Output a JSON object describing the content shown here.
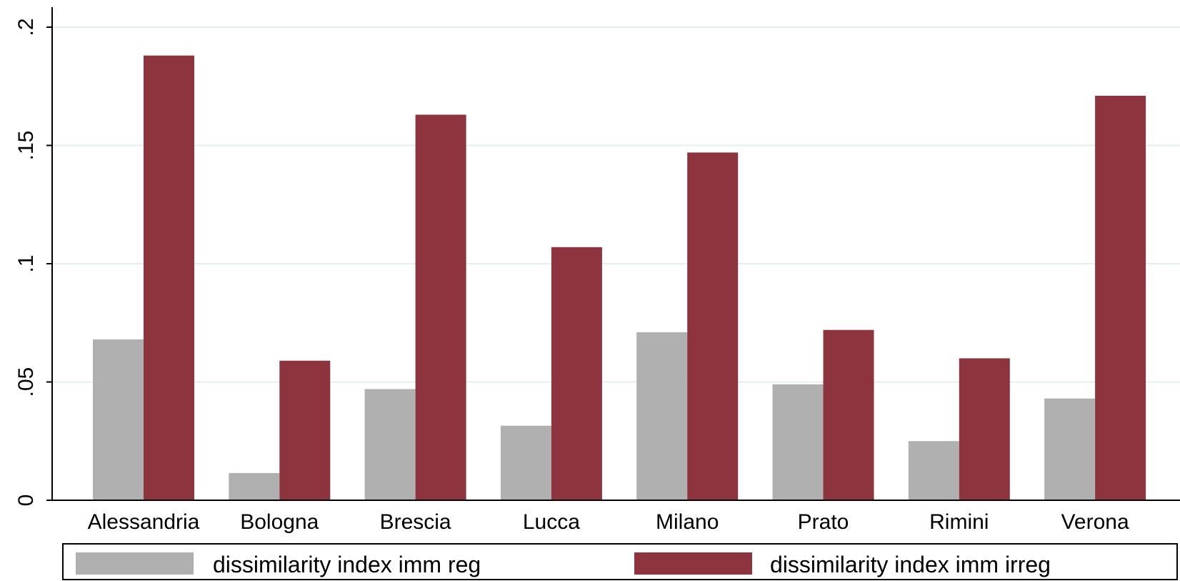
{
  "chart_data": {
    "type": "bar",
    "categories": [
      "Alessandria",
      "Bologna",
      "Brescia",
      "Lucca",
      "Milano",
      "Prato",
      "Rimini",
      "Verona"
    ],
    "series": [
      {
        "name": "dissimilarity index imm reg",
        "color": "#b0b0b0",
        "values": [
          0.068,
          0.0115,
          0.047,
          0.0315,
          0.071,
          0.049,
          0.025,
          0.043
        ]
      },
      {
        "name": "dissimilarity index imm irreg",
        "color": "#8e343e",
        "values": [
          0.188,
          0.059,
          0.163,
          0.107,
          0.147,
          0.072,
          0.06,
          0.171
        ]
      }
    ],
    "yticks": [
      0,
      0.05,
      0.1,
      0.15,
      0.2
    ],
    "ytick_labels": [
      "0",
      ".05",
      ".1",
      ".15",
      ".2"
    ],
    "ylim": [
      0,
      0.2
    ],
    "title": "",
    "xlabel": "",
    "ylabel": "",
    "grid": true,
    "legend_position": "bottom"
  }
}
